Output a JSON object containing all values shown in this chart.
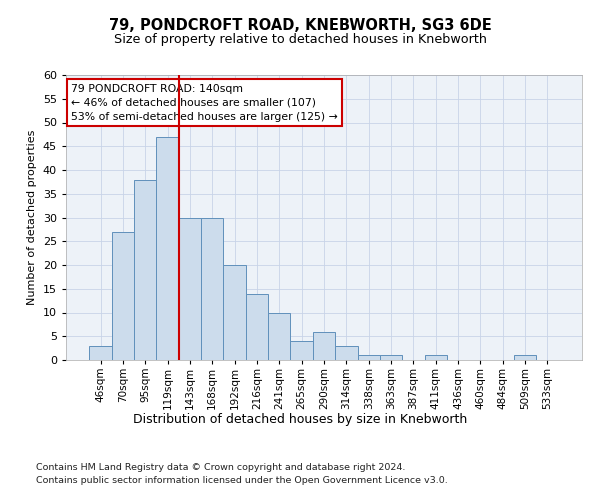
{
  "title": "79, PONDCROFT ROAD, KNEBWORTH, SG3 6DE",
  "subtitle": "Size of property relative to detached houses in Knebworth",
  "xlabel": "Distribution of detached houses by size in Knebworth",
  "ylabel": "Number of detached properties",
  "bar_labels": [
    "46sqm",
    "70sqm",
    "95sqm",
    "119sqm",
    "143sqm",
    "168sqm",
    "192sqm",
    "216sqm",
    "241sqm",
    "265sqm",
    "290sqm",
    "314sqm",
    "338sqm",
    "363sqm",
    "387sqm",
    "411sqm",
    "436sqm",
    "460sqm",
    "484sqm",
    "509sqm",
    "533sqm"
  ],
  "bar_values": [
    3,
    27,
    38,
    47,
    30,
    30,
    20,
    14,
    10,
    4,
    6,
    3,
    1,
    1,
    0,
    1,
    0,
    0,
    0,
    1,
    0
  ],
  "bar_color": "#ccdcec",
  "bar_edgecolor": "#6090bb",
  "vline_x": 3.5,
  "vline_color": "#cc0000",
  "ylim_max": 60,
  "yticks": [
    0,
    5,
    10,
    15,
    20,
    25,
    30,
    35,
    40,
    45,
    50,
    55,
    60
  ],
  "annotation_line1": "79 PONDCROFT ROAD: 140sqm",
  "annotation_line2": "← 46% of detached houses are smaller (107)",
  "annotation_line3": "53% of semi-detached houses are larger (125) →",
  "annotation_box_facecolor": "#ffffff",
  "annotation_box_edgecolor": "#cc0000",
  "footer1": "Contains HM Land Registry data © Crown copyright and database right 2024.",
  "footer2": "Contains public sector information licensed under the Open Government Licence v3.0.",
  "grid_color": "#c8d4e8",
  "plot_bgcolor": "#edf2f8"
}
